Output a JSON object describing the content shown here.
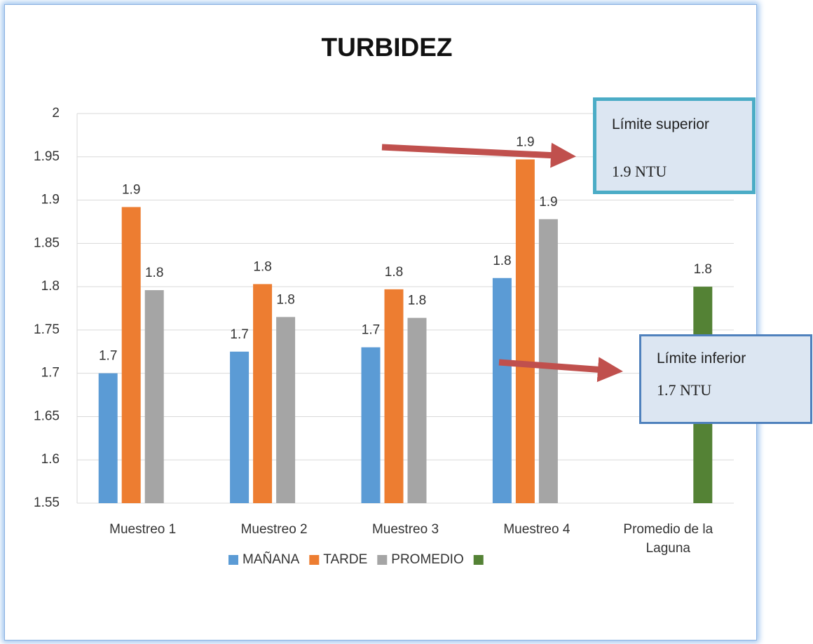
{
  "chart_data": {
    "type": "bar",
    "title": "TURBIDEZ",
    "categories": [
      "Muestreo 1",
      "Muestreo 2",
      "Muestreo 3",
      "Muestreo 4",
      "Promedio de la Laguna"
    ],
    "series": [
      {
        "name": "MAÑANA",
        "color": "#5b9bd5",
        "values": [
          1.7,
          1.725,
          1.73,
          1.81,
          null
        ],
        "value_labels": [
          "1.7",
          "1.7",
          "1.7",
          "1.8",
          null
        ]
      },
      {
        "name": "TARDE",
        "color": "#ed7d31",
        "values": [
          1.892,
          1.803,
          1.797,
          1.947,
          null
        ],
        "value_labels": [
          "1.9",
          "1.8",
          "1.8",
          "1.9",
          null
        ]
      },
      {
        "name": "PROMEDIO",
        "color": "#a5a5a5",
        "values": [
          1.796,
          1.765,
          1.764,
          1.878,
          null
        ],
        "value_labels": [
          "1.8",
          "1.8",
          "1.8",
          "1.9",
          null
        ]
      },
      {
        "color": "#548235",
        "values": [
          null,
          null,
          null,
          null,
          1.8
        ],
        "value_labels": [
          null,
          null,
          null,
          null,
          "1.8"
        ]
      }
    ],
    "ylim": [
      1.55,
      2
    ],
    "yticks": [
      1.55,
      1.6,
      1.65,
      1.7,
      1.75,
      1.8,
      1.85,
      1.9,
      1.95,
      2
    ],
    "grid": true,
    "legend": "bottom",
    "annotations": [
      {
        "title": "Límite superior",
        "text": "1.9 NTU"
      },
      {
        "title": "Límite inferior",
        "text": "1.7 NTU"
      }
    ]
  }
}
